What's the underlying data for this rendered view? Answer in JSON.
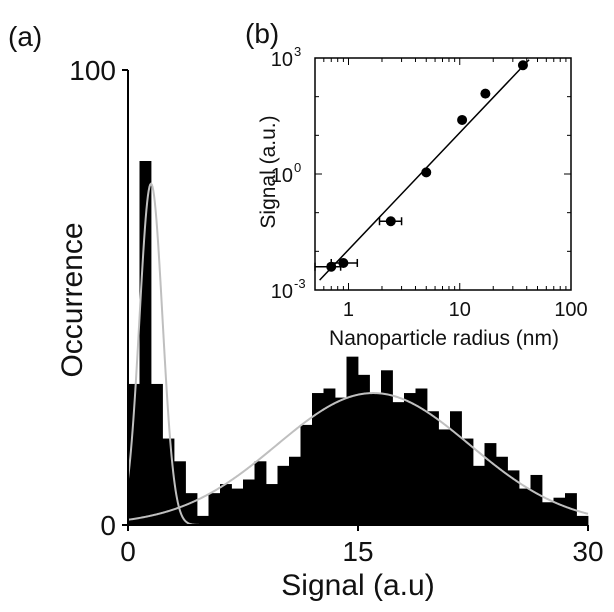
{
  "chart_data": [
    {
      "panel_label": "(a)",
      "type": "bar",
      "xlabel": "Signal (a.u)",
      "ylabel": "Occurrence",
      "xlim": [
        0,
        30
      ],
      "ylim": [
        0,
        100
      ],
      "x_ticks": [
        "0",
        "15",
        "30"
      ],
      "y_ticks": [
        "0",
        "100"
      ],
      "bin_width": 0.75,
      "bin_starts": [
        0,
        0.75,
        1.5,
        2.25,
        3,
        3.75,
        4.5,
        5.25,
        6,
        6.75,
        7.5,
        8.25,
        9,
        9.75,
        10.5,
        11.25,
        12,
        12.75,
        13.5,
        14.25,
        15,
        15.75,
        16.5,
        17.25,
        18,
        18.75,
        19.5,
        20.25,
        21,
        21.75,
        22.5,
        23.25,
        24,
        24.75,
        25.5,
        26.25,
        27,
        27.75,
        28.5,
        29.25
      ],
      "values": [
        31,
        80,
        31,
        19,
        14,
        7,
        2,
        7,
        9,
        8,
        10,
        14,
        9,
        13,
        15,
        22,
        29,
        30,
        28,
        37,
        33,
        29,
        34,
        27,
        29,
        30,
        25,
        21,
        25,
        19,
        13,
        18,
        15,
        12,
        8,
        11,
        5,
        6,
        7,
        2
      ],
      "fits": [
        {
          "shape": "gaussian",
          "amplitude": 75,
          "center": 1.5,
          "sigma": 0.75,
          "color": "#bfbfbf"
        },
        {
          "shape": "gaussian",
          "amplitude": 29,
          "center": 16.0,
          "sigma": 6.3,
          "color": "#bfbfbf"
        }
      ],
      "grid": false
    },
    {
      "panel_label": "(b)",
      "type": "scatter",
      "scale": "log-log",
      "xlabel": "Nanoparticle radius (nm)",
      "ylabel": "Signal (a.u.)",
      "xlim": [
        0.5,
        100
      ],
      "ylim": [
        0.001,
        1000
      ],
      "x_ticks": [
        "1",
        "10",
        "100"
      ],
      "y_tick_bases": [
        "10",
        "10",
        "10"
      ],
      "y_tick_exponents": [
        "-3",
        "0",
        "3"
      ],
      "points": [
        {
          "x": 0.7,
          "y": 0.004,
          "x_low": 0.5,
          "x_high": 0.85
        },
        {
          "x": 0.9,
          "y": 0.005,
          "x_low": 0.7,
          "x_high": 1.2
        },
        {
          "x": 2.4,
          "y": 0.06,
          "x_low": 1.9,
          "x_high": 3.0
        },
        {
          "x": 5.0,
          "y": 1.1
        },
        {
          "x": 10.5,
          "y": 25
        },
        {
          "x": 17.0,
          "y": 120
        },
        {
          "x": 37.0,
          "y": 650
        }
      ],
      "fit_line": {
        "x": [
          0.55,
          42
        ],
        "y": [
          0.0018,
          900
        ]
      },
      "grid": false
    }
  ]
}
